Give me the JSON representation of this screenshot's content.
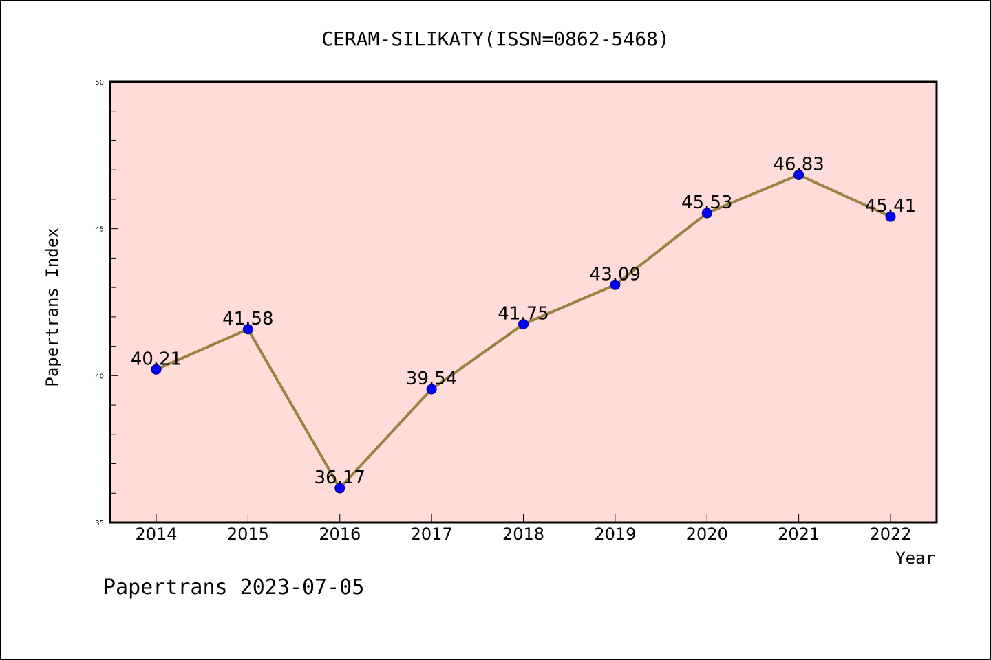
{
  "footer_text": "Papertrans 2023-07-05",
  "chart_data": {
    "type": "line",
    "title": "CERAM-SILIKATY(ISSN=0862-5468)",
    "xlabel": "Year",
    "ylabel": "Papertrans Index",
    "categories": [
      "2014",
      "2015",
      "2016",
      "2017",
      "2018",
      "2019",
      "2020",
      "2021",
      "2022"
    ],
    "values": [
      40.21,
      41.58,
      36.17,
      39.54,
      41.75,
      43.09,
      45.53,
      46.83,
      45.41
    ],
    "data_labels": [
      "40.21",
      "41.58",
      "36.17",
      "39.54",
      "41.75",
      "43.09",
      "45.53",
      "46.83",
      "45.41"
    ],
    "ylim": [
      35,
      50
    ],
    "yticks": [
      "35",
      "40",
      "45",
      "50"
    ],
    "grid": false,
    "legend": "none",
    "colors": {
      "plot_background": "#ffdcda",
      "line": "#9a8340",
      "marker": "#0000ff",
      "marker_edge": "#00007a"
    }
  }
}
